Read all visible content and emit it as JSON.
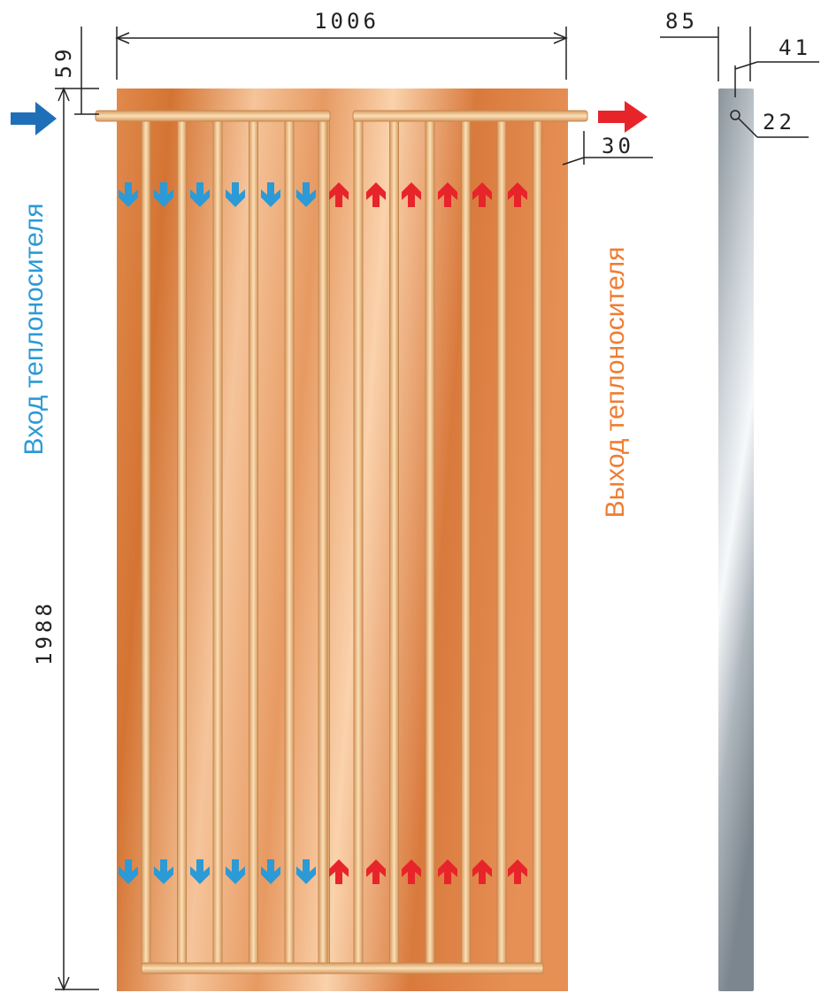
{
  "dimensions": {
    "width": "1006",
    "header_offset": "59",
    "height": "1988",
    "side_depth": "85",
    "pipe_offset": "41",
    "pipe_diameter": "22",
    "edge_offset": "30"
  },
  "labels": {
    "inlet": "Вход теплоносителя",
    "outlet": "Выход теплоносителя"
  },
  "colors": {
    "inlet": "#2b9ad6",
    "outlet": "#e8242b",
    "outlet_text": "#ef7d31",
    "inlet_text": "#2b9ad6",
    "copper": "#d9844a",
    "tube": "#f3c794"
  },
  "tubes": {
    "inlet_count": 6,
    "outlet_count": 6
  }
}
